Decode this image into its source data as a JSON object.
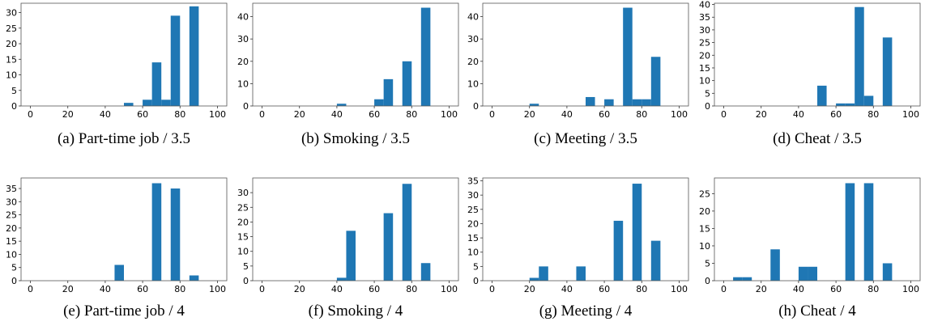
{
  "chart_data": [
    {
      "type": "bar",
      "caption": "(a) Part-time job / 3.5",
      "xlim": [
        -5,
        105
      ],
      "ylim": [
        0,
        33
      ],
      "xticks": [
        0,
        20,
        40,
        60,
        80,
        100
      ],
      "yticks": [
        0,
        5,
        10,
        15,
        20,
        25,
        30
      ],
      "bin_width": 5,
      "bars": [
        {
          "x": 52.5,
          "y": 1
        },
        {
          "x": 62.5,
          "y": 2
        },
        {
          "x": 67.5,
          "y": 14
        },
        {
          "x": 72.5,
          "y": 2
        },
        {
          "x": 77.5,
          "y": 29
        },
        {
          "x": 87.5,
          "y": 32
        }
      ],
      "color": "#1f77b4"
    },
    {
      "type": "bar",
      "caption": "(b) Smoking / 3.5",
      "xlim": [
        -5,
        105
      ],
      "ylim": [
        0,
        46
      ],
      "xticks": [
        0,
        20,
        40,
        60,
        80,
        100
      ],
      "yticks": [
        0,
        10,
        20,
        30,
        40
      ],
      "bin_width": 5,
      "bars": [
        {
          "x": 42.5,
          "y": 1
        },
        {
          "x": 62.5,
          "y": 3
        },
        {
          "x": 67.5,
          "y": 12
        },
        {
          "x": 77.5,
          "y": 20
        },
        {
          "x": 87.5,
          "y": 44
        }
      ],
      "color": "#1f77b4"
    },
    {
      "type": "bar",
      "caption": "(c) Meeting / 3.5",
      "xlim": [
        -5,
        105
      ],
      "ylim": [
        0,
        46
      ],
      "xticks": [
        0,
        20,
        40,
        60,
        80,
        100
      ],
      "yticks": [
        0,
        10,
        20,
        30,
        40
      ],
      "bin_width": 5,
      "bars": [
        {
          "x": 22.5,
          "y": 1
        },
        {
          "x": 52.5,
          "y": 4
        },
        {
          "x": 62.5,
          "y": 3
        },
        {
          "x": 72.5,
          "y": 44
        },
        {
          "x": 77.5,
          "y": 3
        },
        {
          "x": 82.5,
          "y": 3
        },
        {
          "x": 87.5,
          "y": 22
        }
      ],
      "color": "#1f77b4"
    },
    {
      "type": "bar",
      "caption": "(d) Cheat / 3.5",
      "xlim": [
        -5,
        105
      ],
      "ylim": [
        0,
        40.5
      ],
      "xticks": [
        0,
        20,
        40,
        60,
        80,
        100
      ],
      "yticks": [
        0,
        5,
        10,
        15,
        20,
        25,
        30,
        35,
        40
      ],
      "bin_width": 5,
      "bars": [
        {
          "x": 52.5,
          "y": 8
        },
        {
          "x": 62.5,
          "y": 1
        },
        {
          "x": 67.5,
          "y": 1
        },
        {
          "x": 72.5,
          "y": 39
        },
        {
          "x": 77.5,
          "y": 4
        },
        {
          "x": 87.5,
          "y": 27
        }
      ],
      "color": "#1f77b4"
    },
    {
      "type": "bar",
      "caption": "(e) Part-time job / 4",
      "xlim": [
        -5,
        105
      ],
      "ylim": [
        0,
        39
      ],
      "xticks": [
        0,
        20,
        40,
        60,
        80,
        100
      ],
      "yticks": [
        0,
        5,
        10,
        15,
        20,
        25,
        30,
        35
      ],
      "bin_width": 5,
      "bars": [
        {
          "x": 47.5,
          "y": 6
        },
        {
          "x": 67.5,
          "y": 37
        },
        {
          "x": 77.5,
          "y": 35
        },
        {
          "x": 87.5,
          "y": 2
        }
      ],
      "color": "#1f77b4"
    },
    {
      "type": "bar",
      "caption": "(f) Smoking / 4",
      "xlim": [
        -5,
        105
      ],
      "ylim": [
        0,
        35
      ],
      "xticks": [
        0,
        20,
        40,
        60,
        80,
        100
      ],
      "yticks": [
        0,
        5,
        10,
        15,
        20,
        25,
        30
      ],
      "bin_width": 5,
      "bars": [
        {
          "x": 42.5,
          "y": 1
        },
        {
          "x": 47.5,
          "y": 17
        },
        {
          "x": 67.5,
          "y": 23
        },
        {
          "x": 77.5,
          "y": 33
        },
        {
          "x": 87.5,
          "y": 6
        }
      ],
      "color": "#1f77b4"
    },
    {
      "type": "bar",
      "caption": "(g) Meeting / 4",
      "xlim": [
        -5,
        105
      ],
      "ylim": [
        0,
        36
      ],
      "xticks": [
        0,
        20,
        40,
        60,
        80,
        100
      ],
      "yticks": [
        0,
        5,
        10,
        15,
        20,
        25,
        30,
        35
      ],
      "bin_width": 5,
      "bars": [
        {
          "x": 22.5,
          "y": 1
        },
        {
          "x": 27.5,
          "y": 5
        },
        {
          "x": 47.5,
          "y": 5
        },
        {
          "x": 67.5,
          "y": 21
        },
        {
          "x": 77.5,
          "y": 34
        },
        {
          "x": 87.5,
          "y": 14
        }
      ],
      "color": "#1f77b4"
    },
    {
      "type": "bar",
      "caption": "(h) Cheat / 4",
      "xlim": [
        -5,
        105
      ],
      "ylim": [
        0,
        29.5
      ],
      "xticks": [
        0,
        20,
        40,
        60,
        80,
        100
      ],
      "yticks": [
        0,
        5,
        10,
        15,
        20,
        25
      ],
      "bin_width": 5,
      "bars": [
        {
          "x": 7.5,
          "y": 1
        },
        {
          "x": 12.5,
          "y": 1
        },
        {
          "x": 27.5,
          "y": 9
        },
        {
          "x": 42.5,
          "y": 4
        },
        {
          "x": 47.5,
          "y": 4
        },
        {
          "x": 67.5,
          "y": 28
        },
        {
          "x": 77.5,
          "y": 28
        },
        {
          "x": 87.5,
          "y": 5
        }
      ],
      "color": "#1f77b4"
    }
  ]
}
